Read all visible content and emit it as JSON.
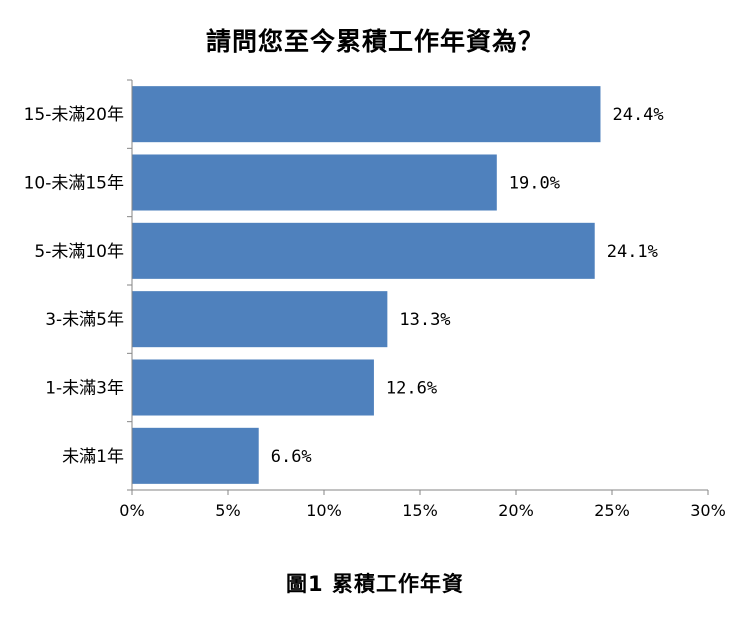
{
  "chart_data": {
    "type": "bar",
    "orientation": "horizontal",
    "title": "請問您至今累積工作年資為？",
    "caption": "圖1 累積工作年資",
    "categories": [
      "15-未滿20年",
      "10-未滿15年",
      "5-未滿10年",
      "3-未滿5年",
      "1-未滿3年",
      "未滿1年"
    ],
    "values": [
      24.4,
      19.0,
      24.1,
      13.3,
      12.6,
      6.6
    ],
    "value_labels": [
      "24.4%",
      "19.0%",
      "24.1%",
      "13.3%",
      "12.6%",
      "6.6%"
    ],
    "xlim": [
      0,
      30
    ],
    "xticks": [
      0,
      5,
      10,
      15,
      20,
      25,
      30
    ],
    "xtick_labels": [
      "0%",
      "5%",
      "10%",
      "15%",
      "20%",
      "25%",
      "30%"
    ],
    "xlabel": "",
    "ylabel": "",
    "grid": false,
    "bar_color": "#4f81bd",
    "axis_color": "#868686"
  }
}
